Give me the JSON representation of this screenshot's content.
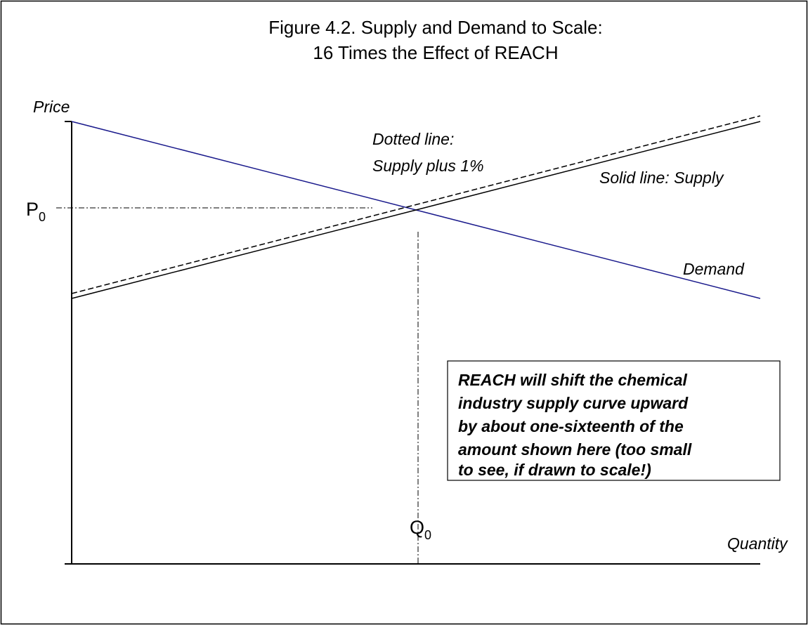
{
  "title": [
    "Figure 4.2. Supply and Demand to Scale:",
    "16 Times the Effect of REACH"
  ],
  "axes": {
    "y_label": "Price",
    "x_label": "Quantity"
  },
  "price_marker": {
    "label": "P",
    "subscript": "0"
  },
  "quantity_marker": {
    "label": "Q",
    "subscript": "0"
  },
  "annotations": {
    "dotted": [
      "Dotted line:",
      "Supply plus 1%"
    ],
    "solid": "Solid line: Supply",
    "demand": "Demand"
  },
  "callout": [
    "REACH will shift the chemical",
    "industry supply curve upward",
    "by about one-sixteenth of the",
    "amount shown here (too small",
    "to see, if drawn to scale!)"
  ]
}
